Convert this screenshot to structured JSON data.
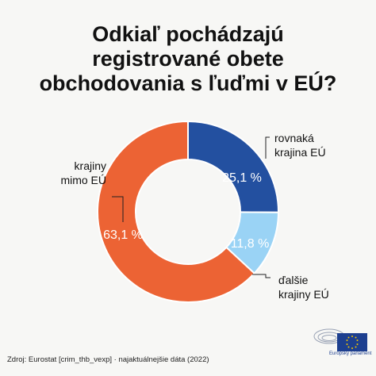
{
  "title_lines": [
    "Odkiaľ pochádzajú",
    "registrované obete",
    "obchodovania s ľuďmi v EÚ?"
  ],
  "source": "Zdroj: Eurostat [crim_thb_vexp] · najaktuálnejšie dáta  (2022)",
  "logo_text": "Európsky parlament",
  "colors": {
    "same_country": "#2350a0",
    "other_eu": "#9ad3f5",
    "non_eu": "#ec6334",
    "background": "#f7f7f5"
  },
  "chart_data": {
    "type": "pie",
    "donut": true,
    "title": "Odkiaľ pochádzajú registrované obete obchodovania s ľuďmi v EÚ?",
    "slices": [
      {
        "label_lines": [
          "rovnaká",
          "krajina EÚ"
        ],
        "value": 25.1,
        "value_label": "25,1 %"
      },
      {
        "label_lines": [
          "ďalšie",
          "krajiny EÚ"
        ],
        "value": 11.8,
        "value_label": "11,8 %"
      },
      {
        "label_lines": [
          "krajiny",
          "mimo EÚ"
        ],
        "value": 63.1,
        "value_label": "63,1 %"
      }
    ]
  }
}
